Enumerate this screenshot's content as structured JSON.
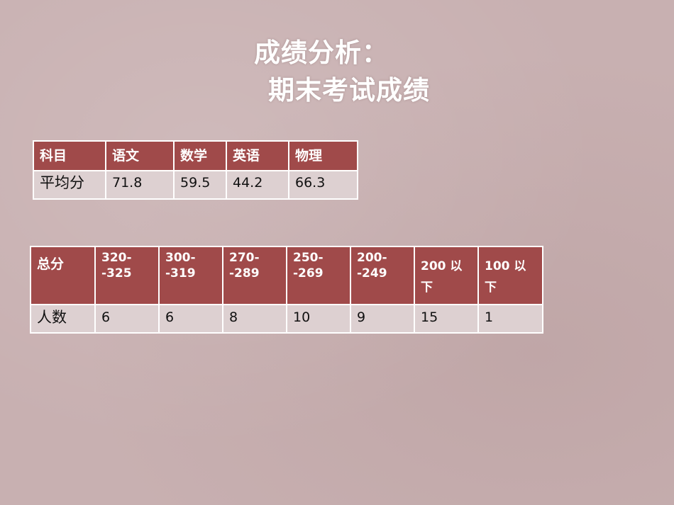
{
  "title": {
    "line1": "成绩分析：",
    "line2": "期末考试成绩"
  },
  "subject_table": {
    "headers": [
      "科目",
      "语文",
      "数学",
      "英语",
      "物理"
    ],
    "row": [
      "平均分",
      "71.8",
      "59.5",
      "44.2",
      "66.3"
    ]
  },
  "score_table": {
    "headers": [
      "总分",
      "320--325",
      "300--319",
      "270--289",
      "250--269",
      "200--249",
      "200 以下",
      "100 以下"
    ],
    "row": [
      "人数",
      "6",
      "6",
      "8",
      "10",
      "9",
      "15",
      "1"
    ]
  },
  "colors": {
    "header": "#a04a4a",
    "body": "#ddd0d1",
    "background": "#c8b0b1"
  }
}
